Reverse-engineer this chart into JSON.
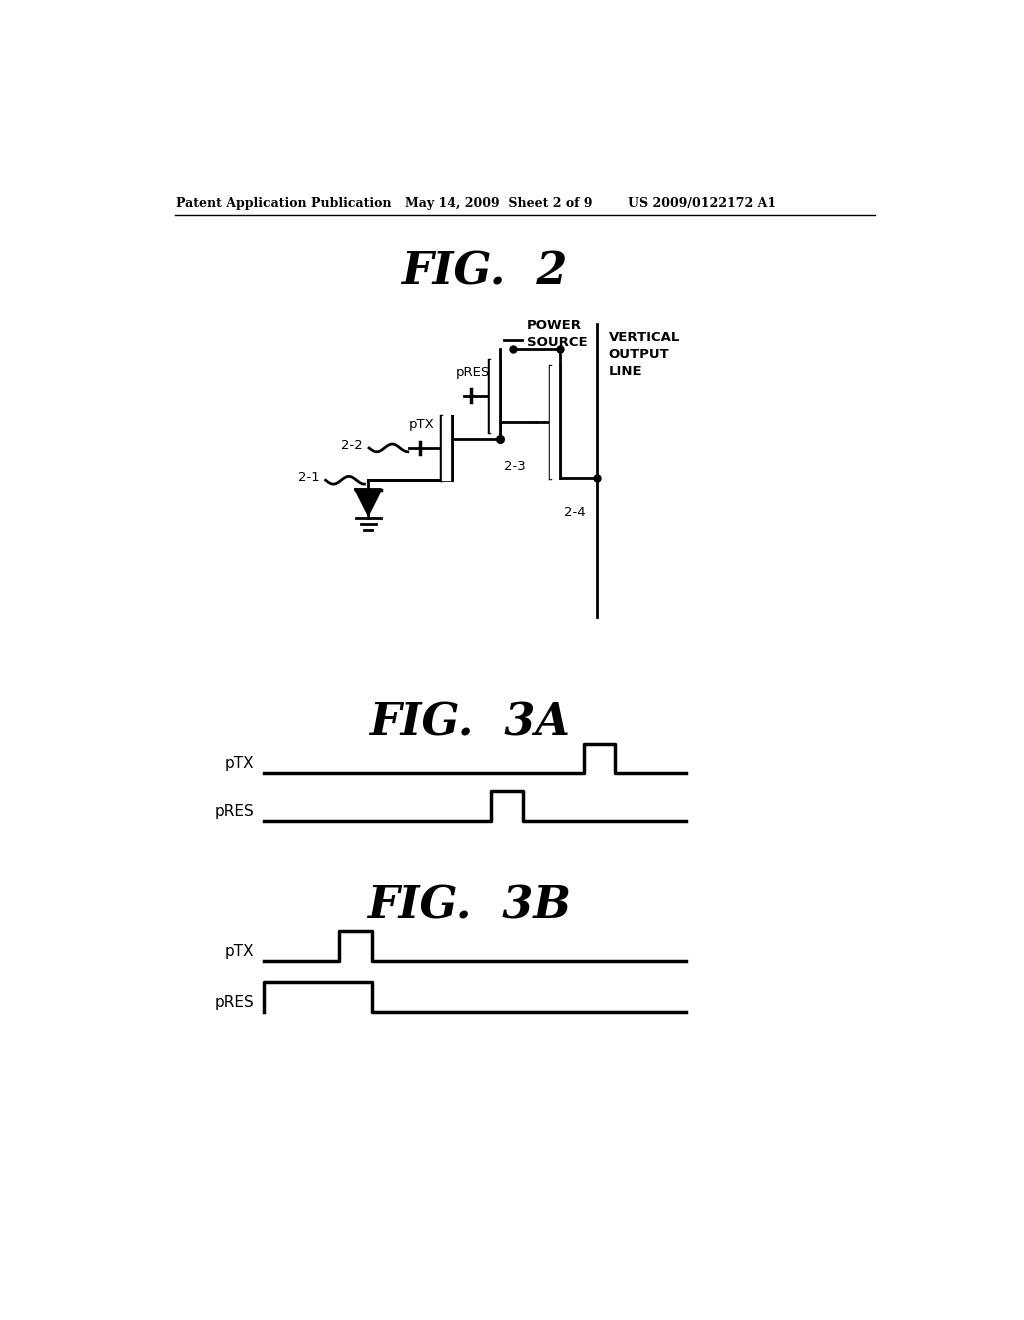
{
  "bg_color": "#ffffff",
  "header_left": "Patent Application Publication",
  "header_mid": "May 14, 2009  Sheet 2 of 9",
  "header_right": "US 2009/0122172 A1",
  "fig2_title": "FIG.  2",
  "fig3a_title": "FIG.  3A",
  "fig3b_title": "FIG.  3B",
  "label_21": "2-1",
  "label_22": "2-2",
  "label_23": "2-3",
  "label_24": "2-4",
  "label_pTX": "pTX",
  "label_pRES": "pRES",
  "label_power": "POWER\nSOURCE",
  "label_vertical": "VERTICAL\nOUTPUT\nLINE"
}
